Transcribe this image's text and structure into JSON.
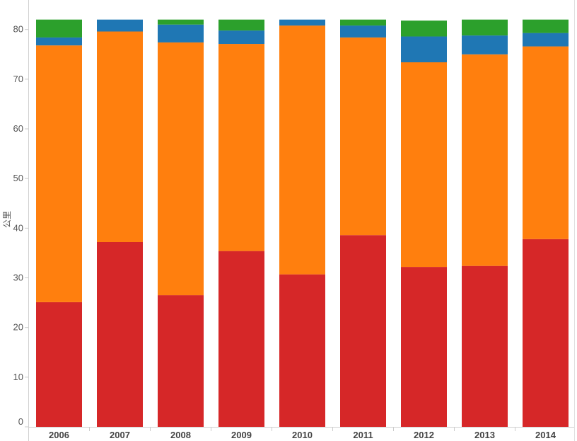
{
  "chart_data": {
    "type": "bar",
    "stacked": true,
    "title": "",
    "xlabel": "",
    "ylabel": "公里",
    "ylim": [
      0,
      82
    ],
    "yticks": [
      0,
      10,
      20,
      30,
      40,
      50,
      60,
      70,
      80
    ],
    "grid": false,
    "categories": [
      "2006",
      "2007",
      "2008",
      "2009",
      "2010",
      "2011",
      "2012",
      "2013",
      "2014"
    ],
    "series": [
      {
        "color": "#d62728",
        "values": [
          25.1,
          37.2,
          26.5,
          35.4,
          30.7,
          38.6,
          32.2,
          32.4,
          37.8
        ]
      },
      {
        "color": "#ff7f0e",
        "values": [
          51.7,
          42.4,
          50.9,
          41.7,
          50.1,
          39.8,
          41.2,
          42.6,
          38.8
        ]
      },
      {
        "color": "#1f77b4",
        "values": [
          1.6,
          2.4,
          3.6,
          2.7,
          1.2,
          2.4,
          5.2,
          3.8,
          2.7
        ]
      },
      {
        "color": "#2ca02c",
        "values": [
          3.6,
          0,
          1.0,
          2.2,
          0,
          1.2,
          3.2,
          3.2,
          2.7
        ]
      }
    ]
  }
}
